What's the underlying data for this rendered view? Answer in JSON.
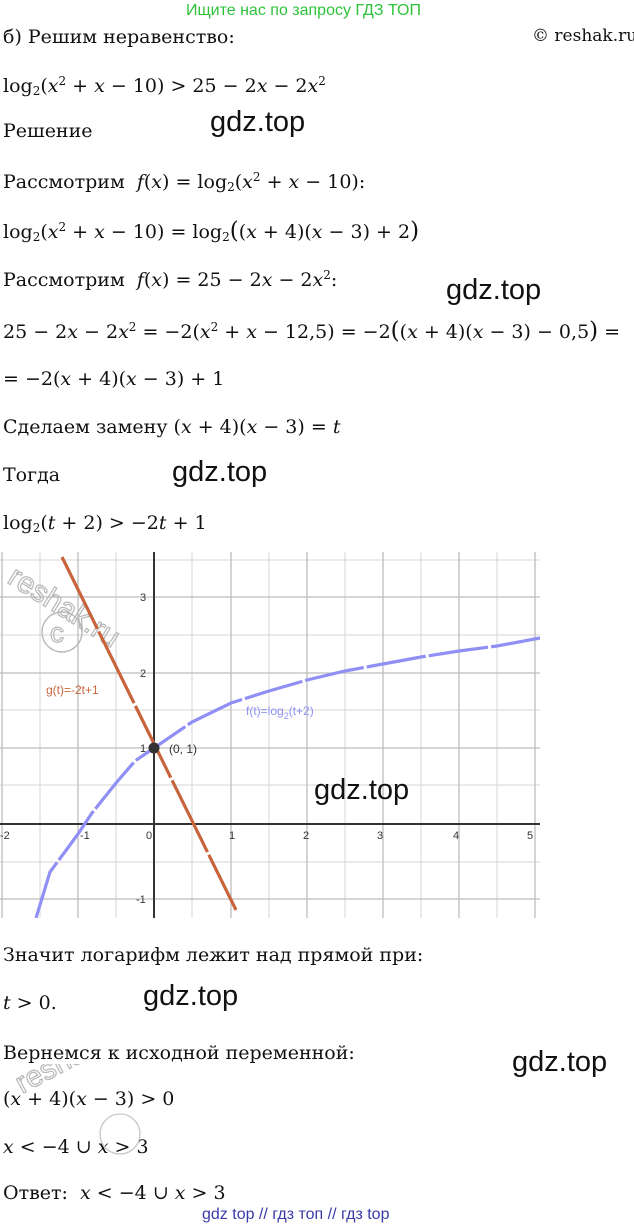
{
  "banner": "Ищите нас по запросу ГДЗ ТОП",
  "copyright": "© reshak.ru",
  "watermarks": [
    "gdz.top",
    "gdz.top",
    "gdz.top",
    "gdz.top",
    "gdz.top",
    "gdz.top"
  ],
  "lines": {
    "title": "б) Решим неравенство:",
    "solution": "Решение",
    "consider_f": "Рассмотрим",
    "consider_f2": "Рассмотрим",
    "substitute": "Сделаем замену",
    "then": "Тогда",
    "conclusion": "Значит логарифм лежит над прямой при:",
    "return": "Вернемся к исходной переменной:",
    "answer": "Ответ:"
  },
  "graph": {
    "ticks_x": [
      "-2",
      "-1",
      "0",
      "1",
      "2",
      "3",
      "4",
      "5"
    ],
    "ticks_y": [
      "3",
      "2",
      "1",
      "-1"
    ],
    "label_g": "g(t)=-2t+1",
    "label_f": "f(t)=log",
    "label_f_sub": "2",
    "label_f_tail": "(t+2)",
    "point_label": "(0, 1)",
    "wm_logo": "reshak.ru",
    "colors": {
      "line": "#c8643c",
      "curve": "#8f8ff5",
      "grid": "#d6d6d6",
      "point": "#333333"
    }
  },
  "footer": "gdz top  //  гдз топ  //  гдз top"
}
